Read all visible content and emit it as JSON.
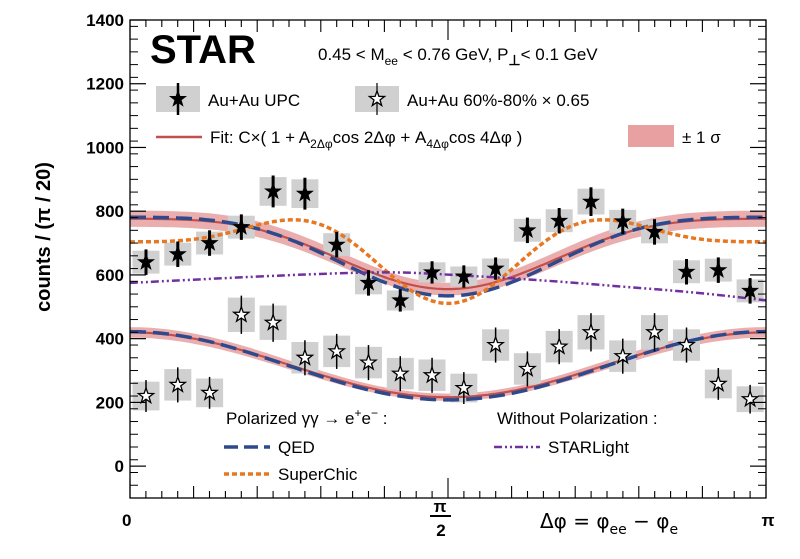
{
  "chart_data": {
    "type": "scatter",
    "title": "STAR",
    "subtitle_parts": {
      "pre": "0.45 < M",
      "sub1": "ee",
      "mid": " < 0.76 GeV, P",
      "sub2": "⊥",
      "post": "< 0.1 GeV"
    },
    "xlabel": "Δφ = φ_ee − φ_e",
    "xlabel_parts": {
      "a": "Δφ = φ",
      "sub1": "ee",
      "b": " − φ",
      "sub2": "e"
    },
    "ylabel": "counts  / (π / 20)",
    "xlim": [
      0,
      3.14159
    ],
    "ylim": [
      -100,
      1400
    ],
    "yticks": [
      0,
      200,
      400,
      600,
      800,
      1000,
      1200,
      1400
    ],
    "ytick_labels": [
      "0",
      "200",
      "400",
      "600",
      "800",
      "1000",
      "1200",
      "1400"
    ],
    "xtick_labels": {
      "zero": "0",
      "half_num": "π",
      "half_den": "2",
      "pi": "π"
    },
    "grid": false,
    "series": [
      {
        "name": "Au+Au UPC",
        "marker": "filled-star",
        "x": [
          0.079,
          0.236,
          0.393,
          0.55,
          0.707,
          0.864,
          1.021,
          1.178,
          1.335,
          1.492,
          1.649,
          1.806,
          1.963,
          2.12,
          2.277,
          2.434,
          2.591,
          2.749,
          2.906,
          3.063
        ],
        "y": [
          640,
          665,
          700,
          750,
          862,
          855,
          695,
          575,
          520,
          608,
          595,
          620,
          740,
          770,
          830,
          768,
          735,
          610,
          615,
          550
        ],
        "yerr": [
          40,
          40,
          40,
          40,
          50,
          50,
          40,
          40,
          35,
          35,
          35,
          35,
          40,
          40,
          45,
          40,
          40,
          40,
          40,
          40
        ]
      },
      {
        "name": "Au+Au 60%-80% × 0.65",
        "marker": "open-star",
        "x": [
          0.079,
          0.236,
          0.393,
          0.55,
          0.707,
          0.864,
          1.021,
          1.178,
          1.335,
          1.492,
          1.649,
          1.806,
          1.963,
          2.12,
          2.277,
          2.434,
          2.591,
          2.749,
          2.906,
          3.063
        ],
        "y": [
          220,
          255,
          230,
          475,
          450,
          340,
          360,
          325,
          290,
          285,
          245,
          380,
          305,
          375,
          420,
          345,
          420,
          380,
          258,
          210
        ],
        "yerr": [
          50,
          55,
          50,
          60,
          60,
          55,
          55,
          55,
          55,
          55,
          50,
          55,
          55,
          55,
          60,
          55,
          60,
          55,
          50,
          45
        ]
      }
    ],
    "fit_upper": {
      "C": 690,
      "A2": 0.16,
      "A4": -0.035
    },
    "fit_lower": {
      "C": 318,
      "A2": 0.32,
      "A4": 0.0
    },
    "qed_upper": {
      "C": 685,
      "A2": 0.18,
      "A4": -0.04
    },
    "qed_lower": {
      "C": 315,
      "A2": 0.34,
      "A4": 0.0
    },
    "superchic_upper": {
      "C": 690,
      "A2": 0.1,
      "A4": -0.12,
      "B": 0.04
    },
    "starlight": {
      "points": [
        [
          0.0,
          575
        ],
        [
          0.4,
          588
        ],
        [
          0.9,
          603
        ],
        [
          1.3,
          610
        ],
        [
          1.6,
          600
        ],
        [
          2.0,
          585
        ],
        [
          2.4,
          565
        ],
        [
          2.8,
          545
        ],
        [
          3.14159,
          520
        ]
      ]
    },
    "legend": {
      "upc": "Au+Au UPC",
      "periph_pre": "Au+Au 60%-80% ",
      "periph_times": "× 0.65",
      "fit_parts": {
        "a": "Fit: C×( 1 + A",
        "s1": "2Δφ",
        "b": "cos 2Δφ + A",
        "s2": "4Δφ",
        "c": "cos 4Δφ )"
      },
      "sigma": "± 1 σ",
      "polarized_pre": "Polarized γγ → e",
      "polarized_sup1": "+",
      "polarized_mid": "e",
      "polarized_sup2": "−",
      "polarized_post": " :",
      "qed": "QED",
      "superchic": "SuperChic",
      "without": "Without Polarization :",
      "starlight": "STARLight"
    },
    "colors": {
      "fit": "#c0504d",
      "band": "#e8a0a0",
      "qed": "#2e4a8c",
      "superchic": "#e87722",
      "starlight": "#7030a0",
      "sys": "#d0d0d0"
    }
  }
}
